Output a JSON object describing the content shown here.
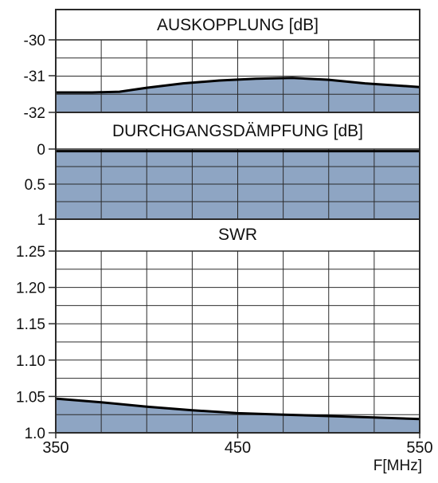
{
  "colors": {
    "fill": "#8ea5c3",
    "grid": "#2b2b2b",
    "curve": "#000000",
    "background": "#ffffff"
  },
  "chart_data": [
    {
      "type": "area",
      "title": "AUSKOPPLUNG [dB]",
      "ylim": [
        -30,
        -32
      ],
      "yticks": [
        "-30",
        "-31",
        "-32"
      ],
      "x": [
        350,
        370,
        385,
        400,
        420,
        440,
        460,
        480,
        500,
        520,
        550
      ],
      "values": [
        -31.45,
        -31.45,
        -31.43,
        -31.32,
        -31.2,
        -31.12,
        -31.07,
        -31.05,
        -31.1,
        -31.2,
        -31.3
      ],
      "grid": true
    },
    {
      "type": "area",
      "title": "DURCHGANGSDÄMPFUNG [dB]",
      "ylim": [
        0,
        1
      ],
      "yticks": [
        "0",
        "0.5",
        "1"
      ],
      "x": [
        350,
        550
      ],
      "values": [
        0.03,
        0.03
      ],
      "grid": true
    },
    {
      "type": "area",
      "title": "SWR",
      "ylim": [
        1.25,
        1.0
      ],
      "yticks": [
        "1.25",
        "1.20",
        "1.15",
        "1.10",
        "1.05",
        "1.0"
      ],
      "x": [
        350,
        375,
        400,
        425,
        450,
        475,
        500,
        525,
        550
      ],
      "values": [
        1.047,
        1.042,
        1.036,
        1.031,
        1.027,
        1.025,
        1.023,
        1.021,
        1.019
      ],
      "grid": true
    }
  ],
  "x_axis": {
    "ticks": [
      "350",
      "450",
      "550"
    ],
    "label": "F[MHz]",
    "range": [
      350,
      550
    ]
  }
}
